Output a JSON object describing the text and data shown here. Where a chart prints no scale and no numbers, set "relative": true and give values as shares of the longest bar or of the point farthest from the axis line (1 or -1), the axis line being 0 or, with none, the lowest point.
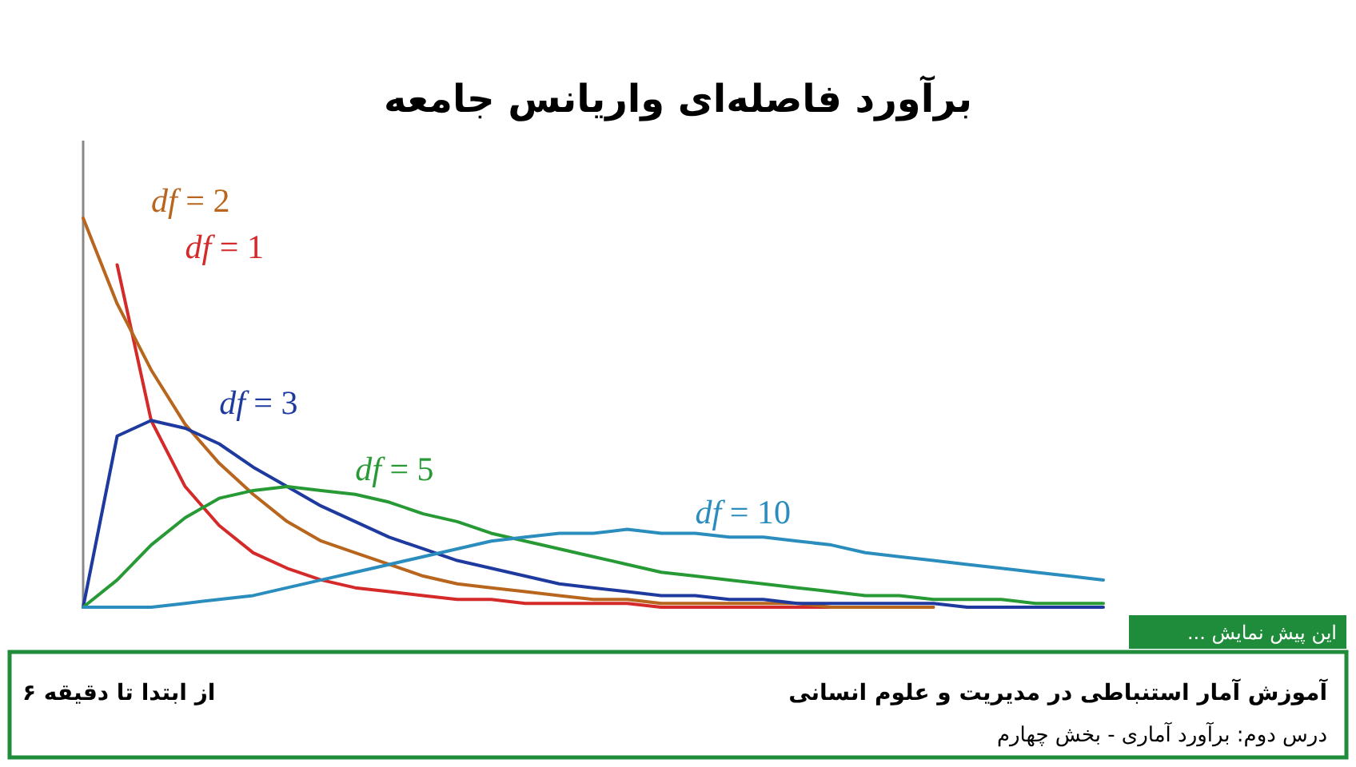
{
  "chart_data": {
    "type": "line",
    "relative": true,
    "title": "برآورد فاصله‌ای واریانس جامعه",
    "categories": [
      null,
      null,
      null,
      null,
      null,
      null,
      null,
      null,
      null,
      null,
      null,
      null,
      null,
      null,
      null,
      null,
      null,
      null,
      null,
      null,
      null,
      null,
      null,
      null,
      null,
      null,
      null,
      null,
      null,
      null,
      null
    ],
    "series": [
      {
        "name": "*df* = 1",
        "color": "#d42a2a",
        "values": [
          null,
          0.88,
          0.48,
          0.31,
          0.21,
          0.14,
          0.1,
          0.07,
          0.05,
          0.04,
          0.03,
          0.02,
          0.02,
          0.01,
          0.01,
          0.01,
          0.01,
          0,
          0,
          0,
          0,
          0,
          0,
          0,
          0,
          0,
          null,
          null,
          null,
          null,
          null
        ]
      },
      {
        "name": "*df* = 2",
        "color": "#b8651e",
        "values": [
          1.0,
          0.78,
          0.61,
          0.47,
          0.37,
          0.29,
          0.22,
          0.17,
          0.14,
          0.11,
          0.08,
          0.06,
          0.05,
          0.04,
          0.03,
          0.02,
          0.02,
          0.01,
          0.01,
          0.01,
          0.01,
          0.01,
          0,
          0,
          0,
          0,
          null,
          null,
          null,
          null,
          null
        ]
      },
      {
        "name": "*df* = 3",
        "color": "#1f3a9e",
        "values": [
          0,
          0.44,
          0.48,
          0.46,
          0.42,
          0.36,
          0.31,
          0.26,
          0.22,
          0.18,
          0.15,
          0.12,
          0.1,
          0.08,
          0.06,
          0.05,
          0.04,
          0.03,
          0.03,
          0.02,
          0.02,
          0.01,
          0.01,
          0.01,
          0.01,
          0.01,
          0,
          0,
          0,
          0,
          0
        ]
      },
      {
        "name": "*df* = 5",
        "color": "#279a35",
        "values": [
          0,
          0.07,
          0.16,
          0.23,
          0.28,
          0.3,
          0.31,
          0.3,
          0.29,
          0.27,
          0.24,
          0.22,
          0.19,
          0.17,
          0.15,
          0.13,
          0.11,
          0.09,
          0.08,
          0.07,
          0.06,
          0.05,
          0.04,
          0.03,
          0.03,
          0.02,
          0.02,
          0.02,
          0.01,
          0.01,
          0.01
        ]
      },
      {
        "name": "*df* = 10",
        "color": "#2a8dbd",
        "values": [
          0,
          0,
          0,
          0.01,
          0.02,
          0.03,
          0.05,
          0.07,
          0.09,
          0.11,
          0.13,
          0.15,
          0.17,
          0.18,
          0.19,
          0.19,
          0.2,
          0.19,
          0.19,
          0.18,
          0.18,
          0.17,
          0.16,
          0.14,
          0.13,
          0.12,
          0.11,
          0.1,
          0.09,
          0.08,
          0.07
        ]
      }
    ],
    "annotations": [
      "این پیش نمایش ...",
      "آموزش آمار استنباطی در مدیریت و علوم انسانی",
      "درس دوم: برآورد آماری - بخش چهارم",
      "از ابتدا تا دقیقه ۶"
    ]
  }
}
